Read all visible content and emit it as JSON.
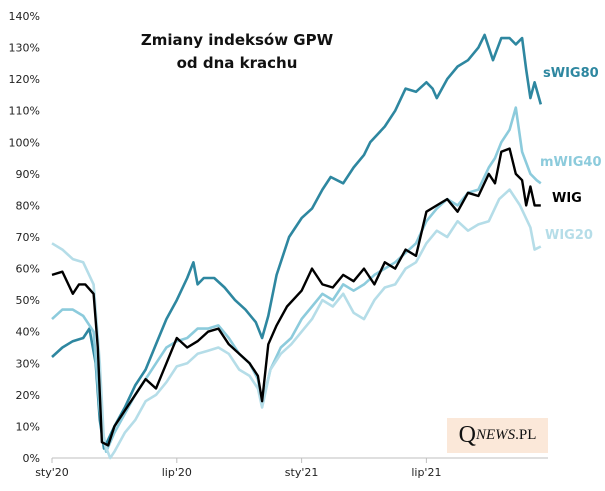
{
  "chart_data": {
    "type": "line",
    "title": [
      "Zmiany indeksów GPW",
      "od dna krachu"
    ],
    "xlabel": "",
    "ylabel": "",
    "x_unit": "months since Jan 2020",
    "xlim": [
      0,
      24
    ],
    "ylim": [
      0,
      140
    ],
    "yticks": [
      0,
      10,
      20,
      30,
      40,
      50,
      60,
      70,
      80,
      90,
      100,
      110,
      120,
      130,
      140
    ],
    "ytick_suffix": "%",
    "xticks": [
      {
        "x": 0,
        "label": "sty'20"
      },
      {
        "x": 6,
        "label": "lip'20"
      },
      {
        "x": 12,
        "label": "sty'21"
      },
      {
        "x": 18,
        "label": "lip'21"
      }
    ],
    "grid": false,
    "legend": "inline-right",
    "series": [
      {
        "name": "sWIG80",
        "color": "#2e87a0",
        "x": [
          0,
          0.5,
          1,
          1.5,
          1.8,
          2.1,
          2.3,
          2.5,
          3,
          3.5,
          4,
          4.5,
          5,
          5.5,
          6,
          6.5,
          6.8,
          7,
          7.3,
          7.8,
          8.3,
          8.8,
          9.3,
          9.8,
          10.1,
          10.4,
          10.8,
          11.4,
          12,
          12.5,
          13,
          13.4,
          14,
          14.5,
          15,
          15.3,
          16,
          16.5,
          17,
          17.5,
          18,
          18.3,
          18.5,
          19,
          19.5,
          20,
          20.5,
          20.8,
          21.2,
          21.6,
          22,
          22.3,
          22.6,
          22.8,
          23,
          23.2,
          23.5
        ],
        "y": [
          32,
          35,
          37,
          38,
          41,
          30,
          12,
          3,
          10,
          16,
          23,
          28,
          36,
          44,
          50,
          57,
          62,
          55,
          57,
          57,
          54,
          50,
          47,
          43,
          38,
          45,
          58,
          70,
          76,
          79,
          85,
          89,
          87,
          92,
          96,
          100,
          105,
          110,
          117,
          116,
          119,
          117,
          114,
          120,
          124,
          126,
          130,
          134,
          126,
          133,
          133,
          131,
          133,
          123,
          114,
          119,
          112
        ]
      },
      {
        "name": "mWIG40",
        "color": "#8ccbdc",
        "x": [
          0,
          0.5,
          1,
          1.5,
          2,
          2.3,
          2.6,
          3,
          3.5,
          4,
          4.5,
          5,
          5.5,
          6,
          6.5,
          7,
          7.5,
          8,
          8.5,
          9,
          9.5,
          9.9,
          10.1,
          10.5,
          11,
          11.5,
          12,
          12.5,
          13,
          13.5,
          14,
          14.5,
          15,
          15.5,
          16,
          16.5,
          17,
          17.5,
          18,
          18.5,
          19,
          19.5,
          20,
          20.5,
          21,
          21.3,
          21.6,
          22,
          22.3,
          22.6,
          23,
          23.3,
          23.5
        ],
        "y": [
          44,
          47,
          47,
          45,
          40,
          15,
          2,
          8,
          14,
          20,
          25,
          30,
          35,
          37,
          38,
          41,
          41,
          42,
          38,
          33,
          30,
          25,
          17,
          28,
          35,
          38,
          44,
          48,
          52,
          50,
          55,
          53,
          55,
          58,
          60,
          62,
          65,
          68,
          75,
          79,
          82,
          80,
          84,
          85,
          92,
          95,
          100,
          104,
          111,
          97,
          90,
          88,
          87
        ]
      },
      {
        "name": "WIG",
        "color": "#000000",
        "x": [
          0,
          0.5,
          1,
          1.3,
          1.6,
          2,
          2.2,
          2.4,
          2.7,
          3,
          3.5,
          4,
          4.5,
          5,
          5.5,
          6,
          6.5,
          7,
          7.5,
          8,
          8.5,
          9,
          9.5,
          9.9,
          10.1,
          10.4,
          10.8,
          11.3,
          12,
          12.5,
          13,
          13.5,
          14,
          14.5,
          15,
          15.5,
          16,
          16.5,
          17,
          17.5,
          18,
          18.5,
          19,
          19.5,
          20,
          20.5,
          21,
          21.3,
          21.6,
          22,
          22.3,
          22.6,
          22.8,
          23,
          23.2,
          23.5
        ],
        "y": [
          58,
          59,
          52,
          55,
          55,
          52,
          35,
          5,
          4,
          10,
          15,
          20,
          25,
          22,
          30,
          38,
          35,
          37,
          40,
          41,
          36,
          33,
          30,
          26,
          18,
          36,
          42,
          48,
          53,
          60,
          55,
          54,
          58,
          56,
          60,
          55,
          62,
          60,
          66,
          64,
          78,
          80,
          82,
          78,
          84,
          83,
          90,
          87,
          97,
          98,
          90,
          88,
          80,
          86,
          80,
          80
        ]
      },
      {
        "name": "WIG20",
        "color": "#b5dde8",
        "x": [
          0,
          0.5,
          1,
          1.5,
          2,
          2.3,
          2.5,
          2.8,
          3,
          3.5,
          4,
          4.5,
          5,
          5.5,
          6,
          6.5,
          7,
          7.5,
          8,
          8.5,
          9,
          9.5,
          9.9,
          10.1,
          10.5,
          11,
          11.5,
          12,
          12.5,
          13,
          13.5,
          14,
          14.5,
          15,
          15.5,
          16,
          16.5,
          17,
          17.5,
          18,
          18.5,
          19,
          19.5,
          20,
          20.5,
          21,
          21.5,
          22,
          22.5,
          23,
          23.2,
          23.5
        ],
        "y": [
          68,
          66,
          63,
          62,
          55,
          30,
          5,
          0,
          2,
          8,
          12,
          18,
          20,
          24,
          29,
          30,
          33,
          34,
          35,
          33,
          28,
          26,
          22,
          16,
          28,
          33,
          36,
          40,
          44,
          50,
          48,
          52,
          46,
          44,
          50,
          54,
          55,
          60,
          62,
          68,
          72,
          70,
          75,
          72,
          74,
          75,
          82,
          85,
          80,
          73,
          66,
          67
        ]
      }
    ],
    "labels_inline": [
      "sWIG80",
      "mWIG40",
      "WIG",
      "WIG20"
    ]
  },
  "logo": {
    "q": "Q",
    "news": "NEWS",
    "pl": ".PL"
  }
}
